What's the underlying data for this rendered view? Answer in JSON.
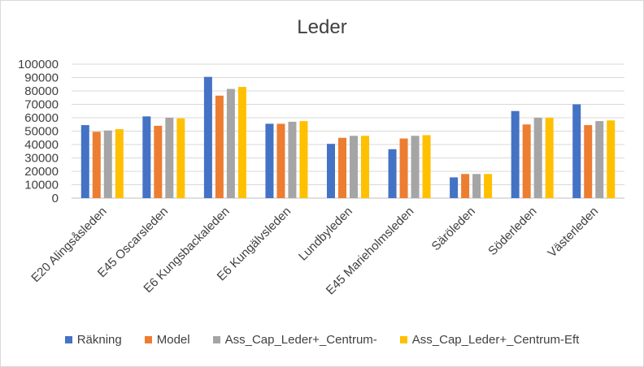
{
  "chart_data": {
    "type": "bar",
    "title": "Leder",
    "categories": [
      "E20 Alingsåsleden",
      "E45 Oscarsleden",
      "E6 Kungsbackaleden",
      "E6 Kungälvsleden",
      "Lundbyleden",
      "E45 Marieholmsleden",
      "Säröleden",
      "Söderleden",
      "Västerleden"
    ],
    "series": [
      {
        "name": "Räkning",
        "color": "#4472c4",
        "values": [
          54500,
          61000,
          90500,
          55500,
          40500,
          36500,
          15500,
          65000,
          70000
        ]
      },
      {
        "name": "Model",
        "color": "#ed7d31",
        "values": [
          49500,
          54000,
          76500,
          55500,
          45000,
          44500,
          18000,
          55000,
          54500
        ]
      },
      {
        "name": "Ass_Cap_Leder+_Centrum-",
        "color": "#a5a5a5",
        "values": [
          50500,
          60000,
          81500,
          57000,
          46500,
          46500,
          18000,
          60000,
          57500
        ]
      },
      {
        "name": "Ass_Cap_Leder+_Centrum-Eft",
        "color": "#ffc000",
        "values": [
          51500,
          59500,
          83000,
          57500,
          46500,
          47000,
          18000,
          60000,
          58000
        ]
      }
    ],
    "ylim": [
      0,
      100000
    ],
    "yticks": [
      "0",
      "10000",
      "20000",
      "30000",
      "40000",
      "50000",
      "60000",
      "70000",
      "80000",
      "90000",
      "100000"
    ],
    "grid": true,
    "legend": "bottom"
  }
}
